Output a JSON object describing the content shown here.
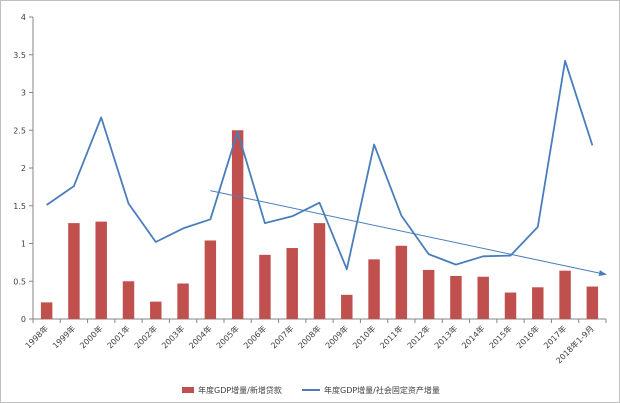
{
  "chart_data": {
    "type": "bar",
    "categories": [
      "1998年",
      "1999年",
      "2000年",
      "2001年",
      "2002年",
      "2003年",
      "2004年",
      "2005年",
      "2006年",
      "2007年",
      "2008年",
      "2009年",
      "2010年",
      "2011年",
      "2012年",
      "2013年",
      "2014年",
      "2015年",
      "2016年",
      "2017年",
      "2018年1-9月"
    ],
    "ylim": [
      0,
      4
    ],
    "yticks": [
      "0",
      "0.5",
      "1",
      "1.5",
      "2",
      "2.5",
      "3",
      "3.5",
      "4"
    ],
    "ytick_values": [
      0,
      0.5,
      1,
      1.5,
      2,
      2.5,
      3,
      3.5,
      4
    ],
    "grid": false,
    "legend_position": "bottom",
    "series": [
      {
        "name": "年度GDP增量/新增贷款",
        "type": "bar",
        "color": "#c0504d",
        "values": [
          0.22,
          1.27,
          1.29,
          0.5,
          0.23,
          0.47,
          1.04,
          2.5,
          0.85,
          0.94,
          1.27,
          0.32,
          0.79,
          0.97,
          0.65,
          0.57,
          0.56,
          0.35,
          0.42,
          0.64,
          0.43
        ]
      },
      {
        "name": "年度GDP增量/社会固定资产增量",
        "type": "line",
        "color": "#4a7ebb",
        "values": [
          1.51,
          1.76,
          2.67,
          1.53,
          1.02,
          1.2,
          1.32,
          2.48,
          1.27,
          1.36,
          1.54,
          0.66,
          2.31,
          1.37,
          0.86,
          0.72,
          0.83,
          0.84,
          1.22,
          3.42,
          2.3
        ]
      }
    ],
    "trend_arrow": {
      "color": "#4a7ebb",
      "from": {
        "x": "2004年",
        "y": 1.7
      },
      "to": {
        "x": "2018年1-9月",
        "y": 0.59
      }
    }
  }
}
